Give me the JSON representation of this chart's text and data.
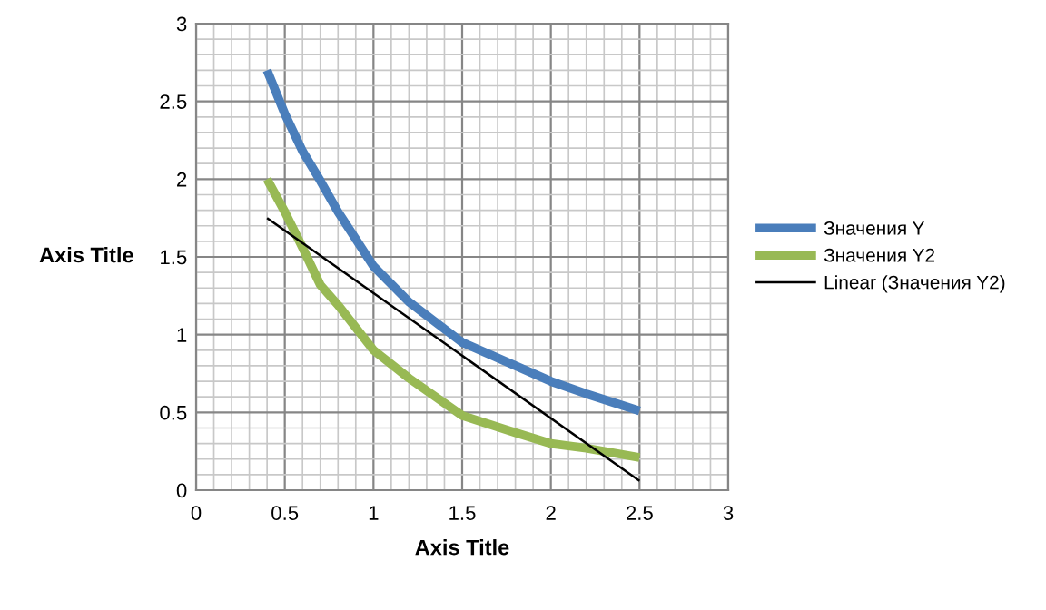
{
  "chart_data": {
    "type": "line",
    "xlabel": "Axis Title",
    "ylabel": "Axis Title",
    "xlim": [
      0,
      3
    ],
    "ylim": [
      0,
      3
    ],
    "xticks": [
      0,
      0.5,
      1,
      1.5,
      2,
      2.5,
      3
    ],
    "yticks": [
      0,
      0.5,
      1,
      1.5,
      2,
      2.5,
      3
    ],
    "grid": true,
    "legend": "right",
    "marker": "none",
    "series": [
      {
        "name": "Значения Y",
        "color": "#4a7ebb",
        "x": [
          0.4,
          0.5,
          0.6,
          0.7,
          0.8,
          1,
          1.2,
          1.5,
          2,
          2.2,
          2.5
        ],
        "values": [
          2.7,
          2.42,
          2.18,
          1.99,
          1.79,
          1.44,
          1.21,
          0.95,
          0.7,
          0.62,
          0.51
        ]
      },
      {
        "name": "Значения Y2",
        "color": "#98b954",
        "x": [
          0.4,
          0.5,
          0.6,
          0.7,
          0.8,
          1,
          1.2,
          1.5,
          1.8,
          2,
          2.2,
          2.5
        ],
        "values": [
          2.0,
          1.79,
          1.56,
          1.32,
          1.19,
          0.9,
          0.72,
          0.48,
          0.37,
          0.3,
          0.27,
          0.21
        ]
      },
      {
        "name": "Linear (Значения Y2)",
        "color": "#000000",
        "x": [
          0.4,
          2.5
        ],
        "values": [
          1.75,
          0.06
        ]
      }
    ]
  }
}
